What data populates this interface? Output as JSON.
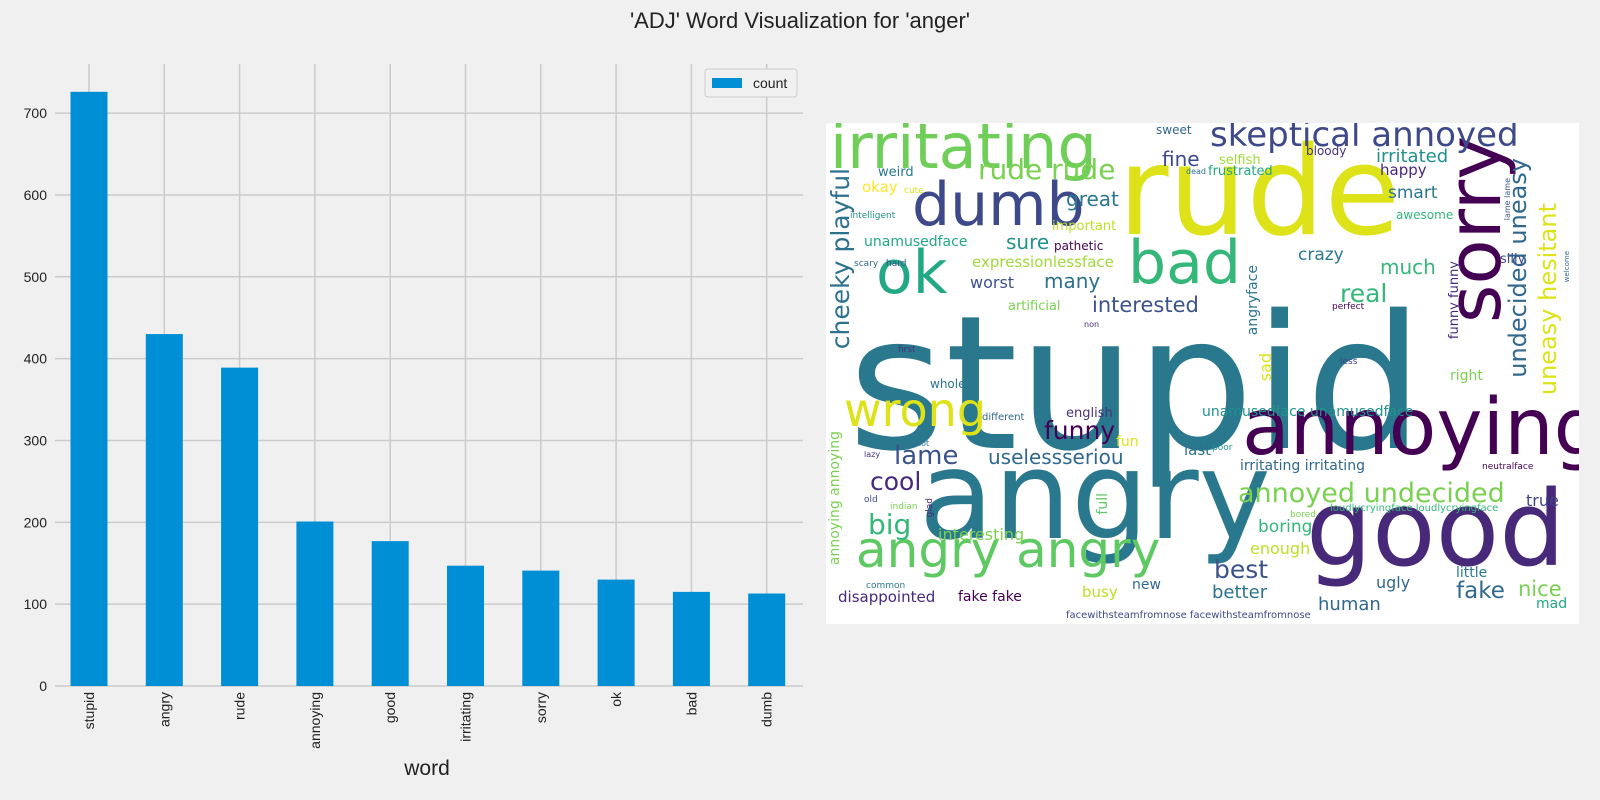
{
  "figure": {
    "title": "'ADJ' Word Visualization for 'anger'",
    "background": "#f0f0f0"
  },
  "chart_data": [
    {
      "type": "bar",
      "categories": [
        "stupid",
        "angry",
        "rude",
        "annoying",
        "good",
        "irritating",
        "sorry",
        "ok",
        "bad",
        "dumb"
      ],
      "series": [
        {
          "name": "count",
          "values": [
            726,
            430,
            389,
            201,
            177,
            147,
            141,
            130,
            115,
            113
          ],
          "color": "#008fd5"
        }
      ],
      "xlabel": "word",
      "ylabel": "",
      "ylim": [
        0,
        760
      ],
      "yticks": [
        0,
        100,
        200,
        300,
        400,
        500,
        600,
        700
      ],
      "grid": true,
      "legend": "top-right",
      "grid_color": "#cbcbcb"
    },
    {
      "type": "wordcloud",
      "background": "#ffffff",
      "words": [
        {
          "text": "stupid",
          "color": "#2a788e"
        },
        {
          "text": "rude",
          "color": "#dde318"
        },
        {
          "text": "angry",
          "color": "#2a788e"
        },
        {
          "text": "good",
          "color": "#482878"
        },
        {
          "text": "annoying",
          "color": "#440154"
        },
        {
          "text": "sorry",
          "color": "#440154"
        },
        {
          "text": "irritating",
          "color": "#6ece58"
        },
        {
          "text": "dumb",
          "color": "#3e4989"
        },
        {
          "text": "ok",
          "color": "#22a884"
        },
        {
          "text": "bad",
          "color": "#35b779"
        },
        {
          "text": "wrong",
          "color": "#dde318"
        },
        {
          "text": "angry angry",
          "color": "#5ec962"
        },
        {
          "text": "skeptical annoyed",
          "color": "#3e4989"
        },
        {
          "text": "annoyed undecided",
          "color": "#7ad151"
        },
        {
          "text": "cheeky playful",
          "color": "#2c728e"
        },
        {
          "text": "undecided uneasy",
          "color": "#31688e"
        },
        {
          "text": "uneasy hesitant",
          "color": "#dde318"
        },
        {
          "text": "rude rude",
          "color": "#7ad151"
        },
        {
          "text": "funny",
          "color": "#440154"
        },
        {
          "text": "lame",
          "color": "#3b528b"
        },
        {
          "text": "cool",
          "color": "#482878"
        },
        {
          "text": "big",
          "color": "#35b779"
        },
        {
          "text": "uselessseriou",
          "color": "#31688e"
        },
        {
          "text": "real",
          "color": "#35b779"
        },
        {
          "text": "interested",
          "color": "#3b528b"
        },
        {
          "text": "best",
          "color": "#3b528b"
        },
        {
          "text": "fake",
          "color": "#31688e"
        },
        {
          "text": "nice",
          "color": "#7ad151"
        },
        {
          "text": "great",
          "color": "#2a788e"
        },
        {
          "text": "fine",
          "color": "#3e4989"
        },
        {
          "text": "sure",
          "color": "#21918c"
        },
        {
          "text": "many",
          "color": "#2c728e"
        },
        {
          "text": "much",
          "color": "#35b779"
        },
        {
          "text": "irritated",
          "color": "#21918c"
        },
        {
          "text": "smart",
          "color": "#2a788e"
        },
        {
          "text": "happy",
          "color": "#482878"
        },
        {
          "text": "crazy",
          "color": "#2a788e"
        },
        {
          "text": "worst",
          "color": "#3b528b"
        },
        {
          "text": "human",
          "color": "#31688e"
        },
        {
          "text": "better",
          "color": "#2c728e"
        },
        {
          "text": "boring",
          "color": "#35b779"
        },
        {
          "text": "enough",
          "color": "#bddf26"
        },
        {
          "text": "interesting",
          "color": "#7ad151"
        },
        {
          "text": "unamusedface",
          "color": "#22a884"
        },
        {
          "text": "unamusedface unamusedface",
          "color": "#21918c"
        },
        {
          "text": "expressionlessface",
          "color": "#a0da39"
        },
        {
          "text": "irritating irritating",
          "color": "#31688e"
        },
        {
          "text": "angryface",
          "color": "#2a788e"
        },
        {
          "text": "funny funny",
          "color": "#482878"
        },
        {
          "text": "annoying annoying",
          "color": "#7ad151"
        },
        {
          "text": "disappointed",
          "color": "#482878"
        },
        {
          "text": "fake fake",
          "color": "#440154"
        },
        {
          "text": "true",
          "color": "#414487"
        },
        {
          "text": "ugly",
          "color": "#31688e"
        },
        {
          "text": "busy",
          "color": "#bddf26"
        },
        {
          "text": "new",
          "color": "#31688e"
        },
        {
          "text": "last",
          "color": "#2c728e"
        },
        {
          "text": "fun",
          "color": "#dde318"
        },
        {
          "text": "english",
          "color": "#46327e"
        },
        {
          "text": "okay",
          "color": "#fde725"
        },
        {
          "text": "weird",
          "color": "#2a788e"
        },
        {
          "text": "selfish",
          "color": "#a0da39"
        },
        {
          "text": "frustrated",
          "color": "#22a884"
        },
        {
          "text": "bloody",
          "color": "#46337e"
        },
        {
          "text": "sweet",
          "color": "#31688e"
        },
        {
          "text": "important",
          "color": "#bddf26"
        },
        {
          "text": "pathetic",
          "color": "#440154"
        },
        {
          "text": "awesome",
          "color": "#35b779"
        },
        {
          "text": "silly",
          "color": "#3e4989"
        },
        {
          "text": "right",
          "color": "#7ad151"
        },
        {
          "text": "sad",
          "color": "#dde318"
        },
        {
          "text": "little",
          "color": "#2a788e"
        },
        {
          "text": "mad",
          "color": "#22a884"
        },
        {
          "text": "full",
          "color": "#5ec962"
        },
        {
          "text": "whole",
          "color": "#2c728e"
        },
        {
          "text": "artificial",
          "color": "#7ad151"
        },
        {
          "text": "different",
          "color": "#31688e"
        },
        {
          "text": "perfect",
          "color": "#440154"
        },
        {
          "text": "less",
          "color": "#3e4989"
        },
        {
          "text": "first",
          "color": "#46327e"
        },
        {
          "text": "non",
          "color": "#482878"
        },
        {
          "text": "hot",
          "color": "#2c728e"
        },
        {
          "text": "lazy",
          "color": "#46327e"
        },
        {
          "text": "old",
          "color": "#3b528b"
        },
        {
          "text": "indian",
          "color": "#7ad151"
        },
        {
          "text": "glad",
          "color": "#482878"
        },
        {
          "text": "common",
          "color": "#2a788e"
        },
        {
          "text": "poor",
          "color": "#21918c"
        },
        {
          "text": "bored",
          "color": "#7ad151"
        },
        {
          "text": "scary",
          "color": "#31688e"
        },
        {
          "text": "hard",
          "color": "#3b528b"
        },
        {
          "text": "cute",
          "color": "#dde318"
        },
        {
          "text": "intelligent",
          "color": "#21918c"
        },
        {
          "text": "dead",
          "color": "#2c728e"
        },
        {
          "text": "neutralface",
          "color": "#440154"
        },
        {
          "text": "loudlycryingface loudlycryingface",
          "color": "#35b779"
        },
        {
          "text": "facewithsteamfromnose facewithsteamfromnose",
          "color": "#3e4989"
        },
        {
          "text": "lame lame",
          "color": "#3b528b"
        },
        {
          "text": "welcome",
          "color": "#2c728e"
        }
      ]
    }
  ]
}
